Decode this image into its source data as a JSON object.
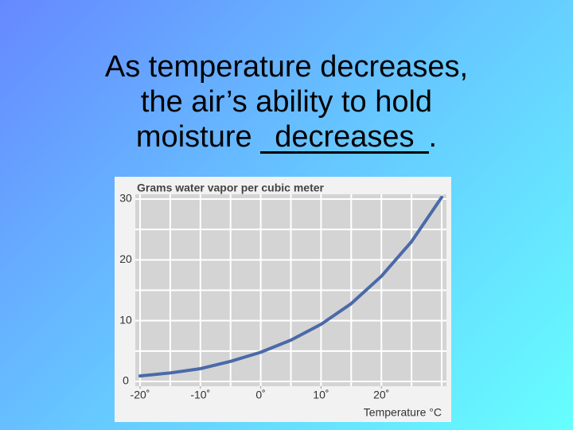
{
  "slide": {
    "lines": [
      "As temperature decreases,",
      "the air’s ability to hold"
    ],
    "prefix": "moisture ",
    "answer": "decreases",
    "suffix": "."
  },
  "chart_data": {
    "type": "line",
    "title": "Grams water vapor per cubic meter",
    "xlabel": "Temperature °C",
    "x": [
      -20,
      -15,
      -10,
      -5,
      0,
      5,
      10,
      15,
      20,
      25,
      30
    ],
    "series": [
      {
        "name": "Water vapor",
        "color": "#4a6aa8",
        "values": [
          0.9,
          1.4,
          2.1,
          3.3,
          4.8,
          6.8,
          9.4,
          12.8,
          17.3,
          23.0,
          30.3
        ]
      }
    ],
    "xlim": [
      -20,
      30
    ],
    "ylim": [
      0,
      30
    ],
    "xticks": [
      {
        "value": -20,
        "label": "-20˚"
      },
      {
        "value": -10,
        "label": "-10˚"
      },
      {
        "value": 0,
        "label": "0˚"
      },
      {
        "value": 10,
        "label": "10˚"
      },
      {
        "value": 20,
        "label": "20˚"
      }
    ],
    "yticks": [
      0,
      10,
      20,
      30
    ],
    "xgrid": [
      -20,
      -15,
      -10,
      -5,
      0,
      5,
      10,
      15,
      20,
      25,
      30
    ],
    "ygrid": [
      0,
      5,
      10,
      15,
      20,
      25,
      30
    ],
    "grid": true
  }
}
